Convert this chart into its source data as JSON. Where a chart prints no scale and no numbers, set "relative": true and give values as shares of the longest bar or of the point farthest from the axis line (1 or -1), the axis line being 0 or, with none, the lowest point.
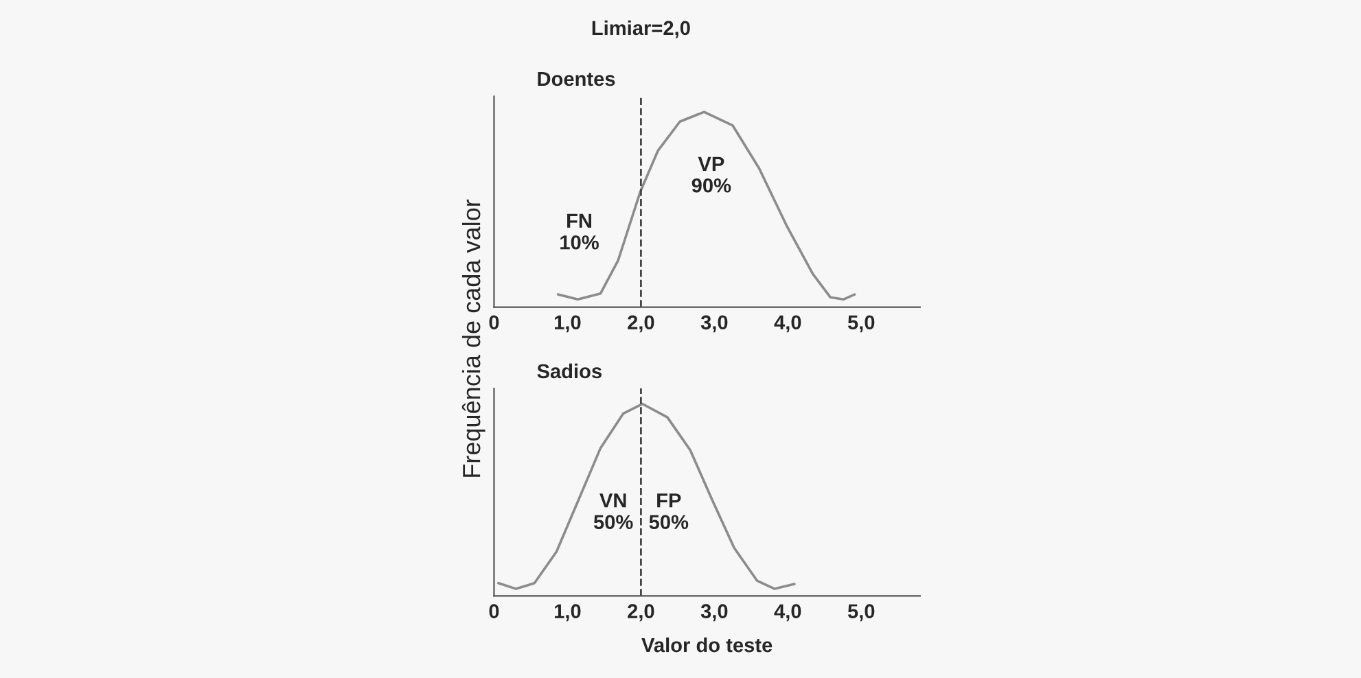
{
  "chart_data": [
    {
      "type": "line",
      "title": "Doentes",
      "ylabel": "Frequência de cada valor",
      "relative": true,
      "xlim": [
        0,
        5.8
      ],
      "xticks": [
        0,
        {
          "value": 1,
          "label": "1,0"
        },
        {
          "value": 2,
          "label": "2,0"
        },
        {
          "value": 3,
          "label": "3,0"
        },
        {
          "value": 4,
          "label": "4,0"
        },
        {
          "value": 5,
          "label": "5,0"
        }
      ],
      "series": [
        {
          "color": "#8c8c8c",
          "x": [
            0.87,
            1.14,
            1.45,
            1.69,
            1.99,
            2.23,
            2.53,
            2.86,
            3.25,
            3.61,
            3.98,
            4.34,
            4.58,
            4.76,
            4.91
          ],
          "values": [
            0.065,
            0.04,
            0.07,
            0.24,
            0.59,
            0.8,
            0.95,
            1.0,
            0.93,
            0.71,
            0.42,
            0.17,
            0.05,
            0.04,
            0.065
          ]
        }
      ],
      "ref_lines": [
        {
          "axis": "x",
          "value": 2,
          "label": "Limiar=2,0",
          "color": "#444444",
          "line_style": "dashed"
        }
      ],
      "annotations": [
        "FN\n10%",
        "VP\n90%"
      ],
      "grid": false,
      "tick_labels": "x"
    },
    {
      "type": "line",
      "title": "Sadios",
      "xlabel": "Valor do teste",
      "relative": true,
      "xlim": [
        0,
        5.8
      ],
      "xticks": [
        0,
        {
          "value": 1,
          "label": "1,0"
        },
        {
          "value": 2,
          "label": "2,0"
        },
        {
          "value": 3,
          "label": "3,0"
        },
        {
          "value": 4,
          "label": "4,0"
        },
        {
          "value": 5,
          "label": "5,0"
        }
      ],
      "series": [
        {
          "color": "#8c8c8c",
          "x": [
            0.06,
            0.3,
            0.55,
            0.85,
            1.15,
            1.45,
            1.76,
            2.02,
            2.36,
            2.67,
            2.97,
            3.27,
            3.58,
            3.82,
            4.09
          ],
          "values": [
            0.067,
            0.037,
            0.067,
            0.23,
            0.5,
            0.77,
            0.95,
            1.0,
            0.93,
            0.76,
            0.5,
            0.25,
            0.08,
            0.037,
            0.062
          ]
        }
      ],
      "ref_lines": [
        {
          "axis": "x",
          "value": 2,
          "color": "#444444",
          "line_style": "dashed"
        }
      ],
      "annotations": [
        "VN\n50%",
        "FP\n50%"
      ],
      "grid": false,
      "tick_labels": "x"
    }
  ]
}
